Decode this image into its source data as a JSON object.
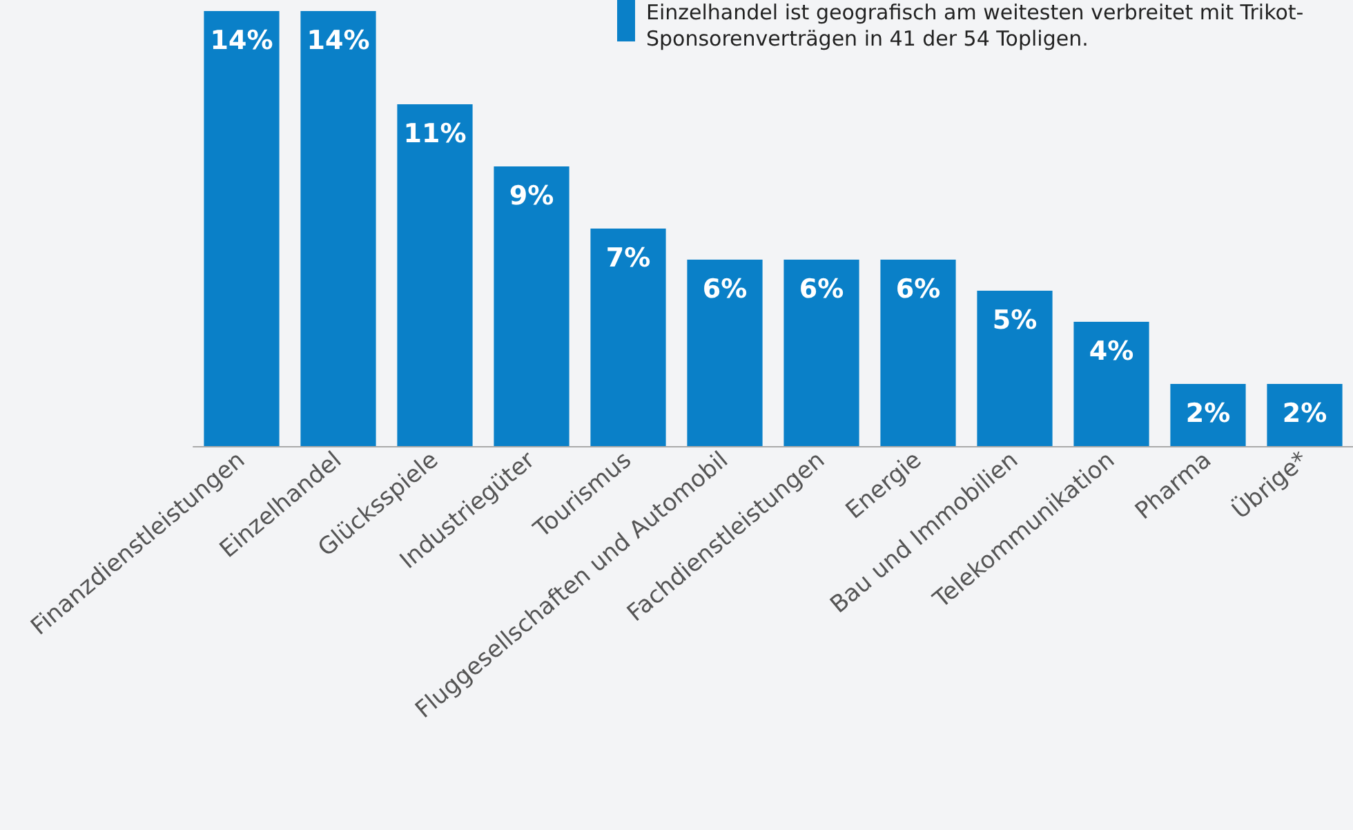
{
  "chart_data": {
    "type": "bar",
    "categories": [
      "Finanzdienstleistungen",
      "Einzelhandel",
      "Glücksspiele",
      "Industriegüter",
      "Tourismus",
      "Fluggesellschaften und Automobil",
      "Fachdienstleistungen",
      "Energie",
      "Bau und Immobilien",
      "Telekommunikation",
      "Pharma",
      "Übrige*"
    ],
    "values": [
      14,
      14,
      11,
      9,
      7,
      6,
      6,
      6,
      5,
      4,
      2,
      2
    ],
    "value_labels": [
      "14%",
      "14%",
      "11%",
      "9%",
      "7%",
      "6%",
      "6%",
      "6%",
      "5%",
      "4%",
      "2%",
      "2%"
    ],
    "color": "#0a80c8",
    "annotations": [
      "Einzelhandel ist geografisch am weitesten verbreitet mit Trikot-Sponsorenverträgen in 41 der 54 Topligen."
    ]
  }
}
